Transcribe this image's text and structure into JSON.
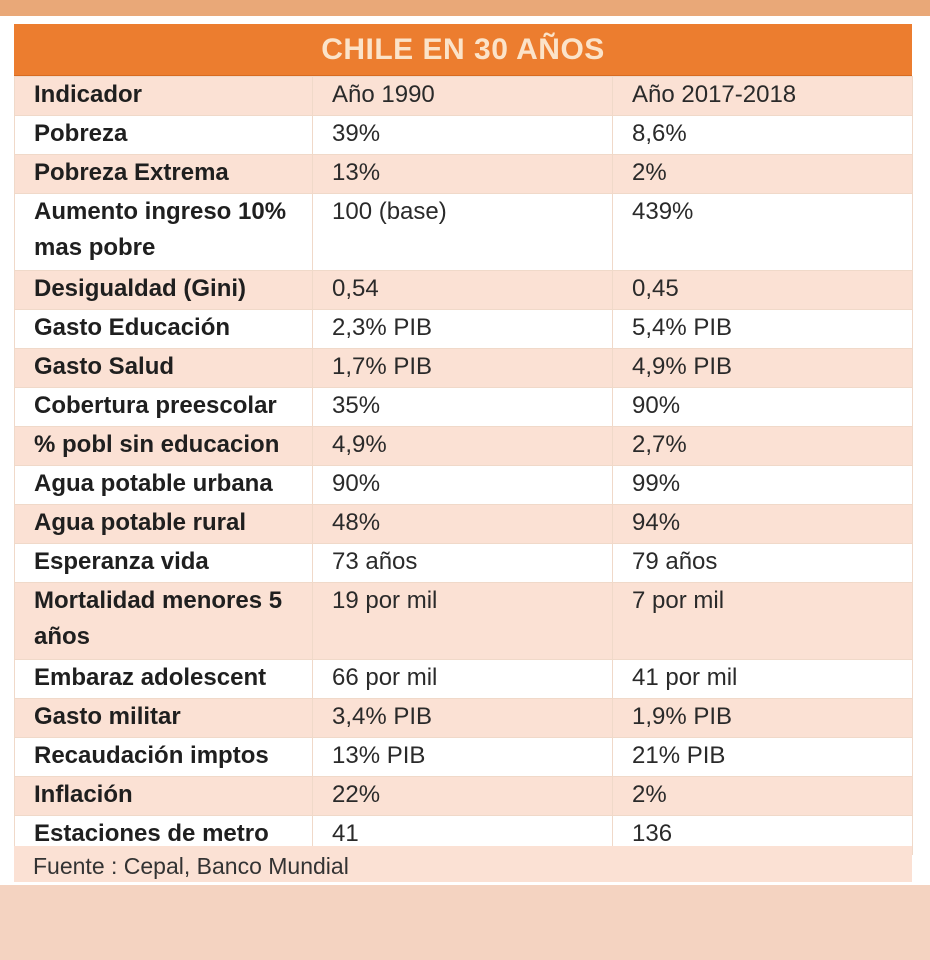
{
  "title": "CHILE EN 30 AÑOS",
  "headers": [
    "Indicador",
    "Año 1990",
    "Año 2017-2018"
  ],
  "rows": [
    {
      "indicador": "Pobreza",
      "y1990": "39%",
      "y2017": "8,6%"
    },
    {
      "indicador": "Pobreza Extrema",
      "y1990": "13%",
      "y2017": "2%"
    },
    {
      "indicador": "Aumento ingreso 10% mas pobre",
      "y1990": "100 (base)",
      "y2017": "439%"
    },
    {
      "indicador": "Desigualdad (Gini)",
      "y1990": "0,54",
      "y2017": "0,45"
    },
    {
      "indicador": "Gasto Educación",
      "y1990": "2,3% PIB",
      "y2017": "5,4% PIB"
    },
    {
      "indicador": "Gasto Salud",
      "y1990": "1,7% PIB",
      "y2017": "4,9% PIB"
    },
    {
      "indicador": "Cobertura preescolar",
      "y1990": "35%",
      "y2017": "90%"
    },
    {
      "indicador": "% pobl sin educacion",
      "y1990": "4,9%",
      "y2017": "2,7%"
    },
    {
      "indicador": "Agua potable urbana",
      "y1990": "90%",
      "y2017": "99%"
    },
    {
      "indicador": "Agua potable rural",
      "y1990": "48%",
      "y2017": "94%"
    },
    {
      "indicador": "Esperanza vida",
      "y1990": "73 años",
      "y2017": "79 años"
    },
    {
      "indicador": "Mortalidad menores 5 años",
      "y1990": "19 por mil",
      "y2017": "7 por mil"
    },
    {
      "indicador": "Embaraz adolescent",
      "y1990": "66 por mil",
      "y2017": "41 por mil"
    },
    {
      "indicador": "Gasto militar",
      "y1990": "3,4% PIB",
      "y2017": "1,9% PIB"
    },
    {
      "indicador": "Recaudación imptos",
      "y1990": "13% PIB",
      "y2017": "21% PIB"
    },
    {
      "indicador": "Inflación",
      "y1990": "22%",
      "y2017": "2%"
    },
    {
      "indicador": "Estaciones de metro",
      "y1990": "41",
      "y2017": "136"
    }
  ],
  "source": "Fuente : Cepal, Banco Mundial",
  "colors": {
    "title_bar": "#ec7d2f",
    "title_text": "#fbe3c9",
    "row_shade": "#fbe1d4",
    "row_plain": "#ffffff",
    "top_band": "#e9a878",
    "bottom_band": "#f4d3c1"
  }
}
